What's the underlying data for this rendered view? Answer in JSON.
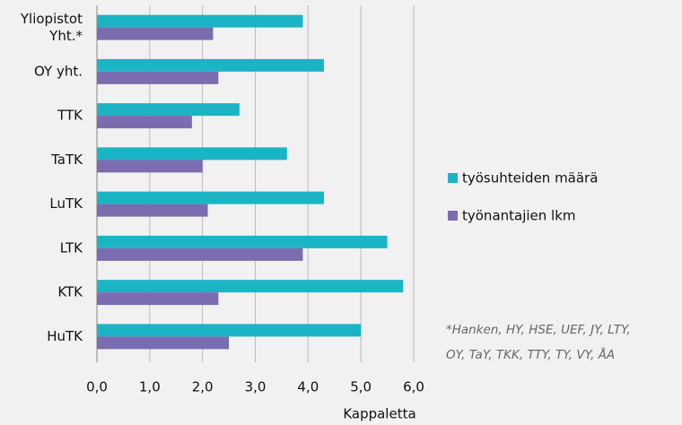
{
  "chart_data": {
    "type": "hbar",
    "categories": [
      "Yliopistot\nYht.*",
      "OY yht.",
      "TTK",
      "TaTK",
      "LuTK",
      "LTK",
      "KTK",
      "HuTK"
    ],
    "series": [
      {
        "name": "työsuhteiden määrä",
        "color": "#1bb4c4",
        "values": [
          3.9,
          4.3,
          2.7,
          3.6,
          4.3,
          5.5,
          5.8,
          5.0
        ]
      },
      {
        "name": "työnantajien lkm",
        "color": "#7b6caf",
        "values": [
          2.2,
          2.3,
          1.8,
          2.0,
          2.1,
          3.9,
          2.3,
          2.5
        ]
      }
    ],
    "xlim": [
      0,
      6
    ],
    "xticks": [
      {
        "value": 0,
        "label": "0,0"
      },
      {
        "value": 1,
        "label": "1,0"
      },
      {
        "value": 2,
        "label": "2,0"
      },
      {
        "value": 3,
        "label": "3,0"
      },
      {
        "value": 4,
        "label": "4,0"
      },
      {
        "value": 5,
        "label": "5,0"
      },
      {
        "value": 6,
        "label": "6,0"
      }
    ],
    "xlabel": "Kappaletta",
    "grid": true,
    "legend": "right",
    "annotation": "*Hanken, HY, HSE, UEF, JY, LTY,\nOY, TaY, TKK, TTY, TY, VY, ÅA"
  }
}
